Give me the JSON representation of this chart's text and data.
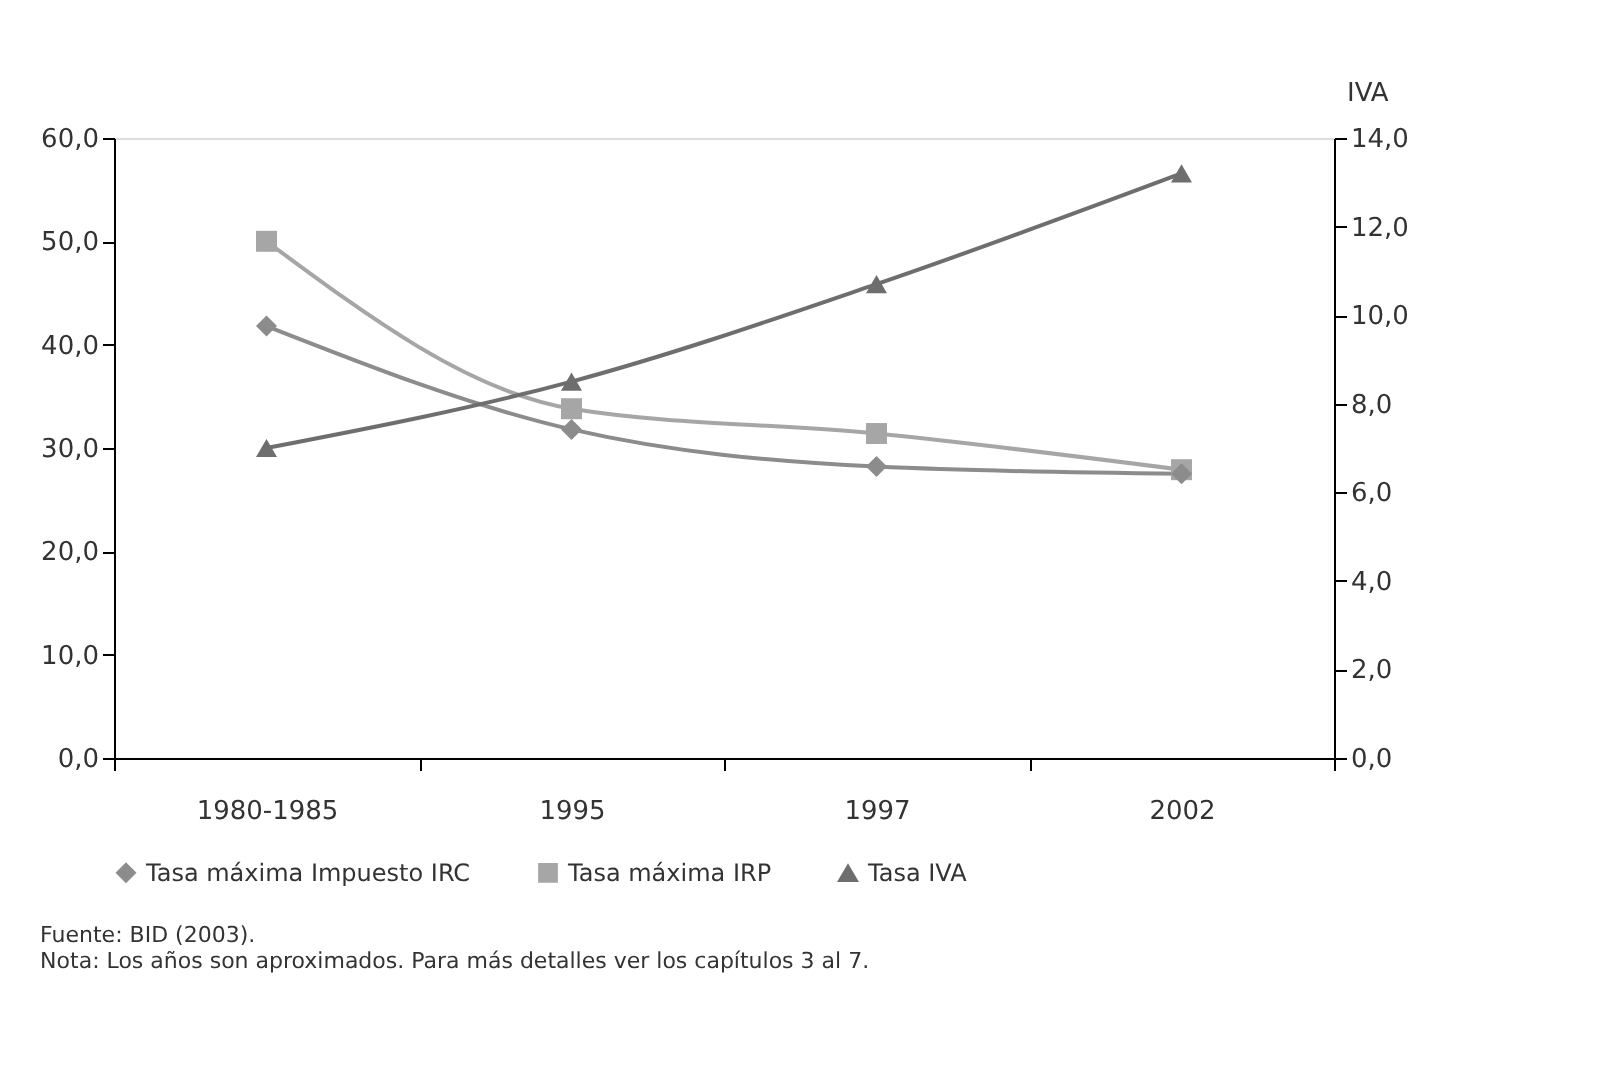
{
  "chart_data": {
    "type": "line",
    "categories": [
      "1980-1985",
      "1995",
      "1997",
      "2002"
    ],
    "series": [
      {
        "name": "Tasa máxima Impuesto IRC",
        "color": "#8c8c8c",
        "marker": "diamond",
        "values": [
          41.8,
          31.8,
          28.2,
          27.5
        ]
      },
      {
        "name": "Tasa máxima IRP",
        "color": "#a6a6a6",
        "marker": "square",
        "values": [
          50.0,
          33.8,
          31.4,
          27.9
        ]
      },
      {
        "name": "Tasa IVA",
        "color": "#6e6e6e",
        "marker": "triangle",
        "axis": "y2",
        "values": [
          7.0,
          8.5,
          10.7,
          13.2
        ]
      }
    ],
    "ylim": [
      0,
      60
    ],
    "yticks": [
      {
        "value": 0,
        "label": "0,0"
      },
      {
        "value": 10,
        "label": "10,0"
      },
      {
        "value": 20,
        "label": "20,0"
      },
      {
        "value": 30,
        "label": "30,0"
      },
      {
        "value": 40,
        "label": "40,0"
      },
      {
        "value": 50,
        "label": "50,0"
      },
      {
        "value": 60,
        "label": "60,0"
      }
    ],
    "y2lim": [
      0,
      14
    ],
    "y2ticks": [
      {
        "value": 0,
        "label": "0,0"
      },
      {
        "value": 2,
        "label": "2,0"
      },
      {
        "value": 4,
        "label": "4,0"
      },
      {
        "value": 6,
        "label": "6,0"
      },
      {
        "value": 8,
        "label": "8,0"
      },
      {
        "value": 10,
        "label": "10,0"
      },
      {
        "value": 12,
        "label": "12,0"
      },
      {
        "value": 14,
        "label": "14,0"
      }
    ],
    "y2label": "IVA",
    "grid": false,
    "legend": "bottom",
    "line_style": "solid",
    "annotations": [
      "Fuente: BID (2003).",
      "Nota: Los años son aproximados. Para más detalles ver los capítulos 3 al 7."
    ]
  }
}
